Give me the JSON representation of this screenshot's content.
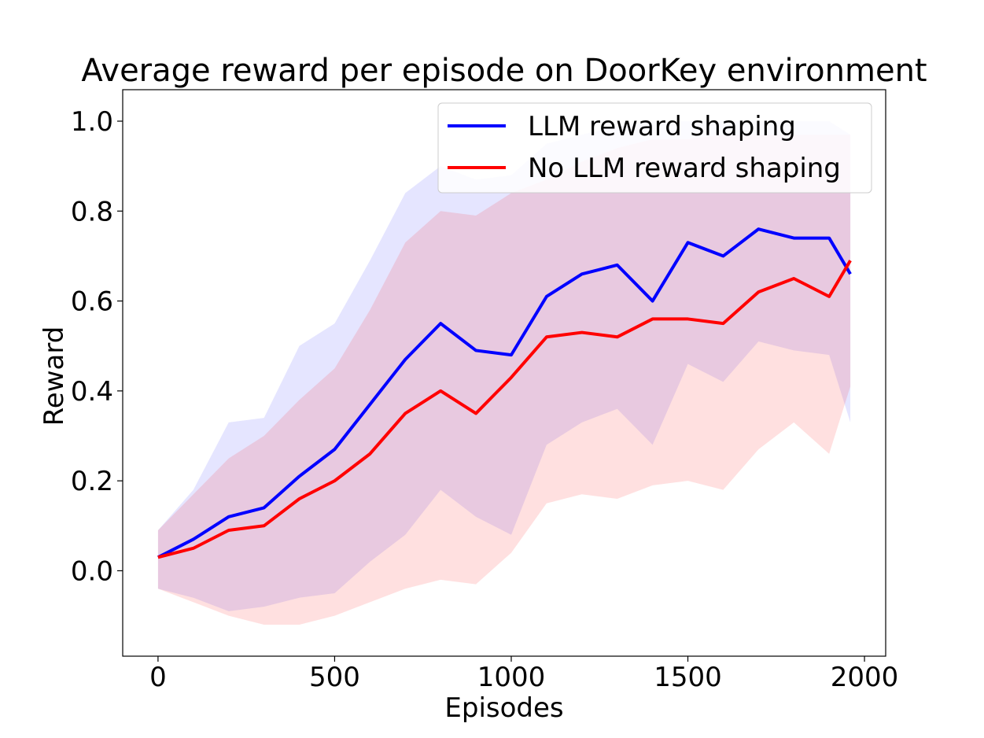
{
  "chart_data": {
    "type": "line",
    "title": "Average reward per episode on DoorKey environment",
    "xlabel": "Episodes",
    "ylabel": "Reward",
    "xlim": [
      -100,
      2060
    ],
    "ylim": [
      -0.19,
      1.07
    ],
    "xticks": [
      0,
      500,
      1000,
      1500,
      2000
    ],
    "yticks": [
      0.0,
      0.2,
      0.4,
      0.6,
      0.8,
      1.0
    ],
    "xtick_labels": [
      "0",
      "500",
      "1000",
      "1500",
      "2000"
    ],
    "ytick_labels": [
      "0.0",
      "0.2",
      "0.4",
      "0.6",
      "0.8",
      "1.0"
    ],
    "legend_position": "top-right",
    "grid": false,
    "x": [
      0,
      100,
      200,
      300,
      400,
      500,
      600,
      700,
      800,
      900,
      1000,
      1100,
      1200,
      1300,
      1400,
      1500,
      1600,
      1700,
      1800,
      1900,
      1960
    ],
    "series": [
      {
        "name": "LLM reward shaping",
        "color": "#0000ff",
        "band_color": "rgba(0,0,255,0.10)",
        "values": [
          0.03,
          0.07,
          0.12,
          0.14,
          0.21,
          0.27,
          0.37,
          0.47,
          0.55,
          0.49,
          0.48,
          0.61,
          0.66,
          0.68,
          0.6,
          0.73,
          0.7,
          0.76,
          0.74,
          0.74,
          0.66
        ],
        "upper": [
          0.09,
          0.18,
          0.33,
          0.34,
          0.5,
          0.55,
          0.69,
          0.84,
          0.9,
          0.87,
          0.88,
          0.95,
          0.97,
          0.99,
          1.0,
          1.0,
          1.0,
          1.0,
          1.0,
          1.0,
          0.97
        ],
        "lower": [
          -0.04,
          -0.06,
          -0.09,
          -0.08,
          -0.06,
          -0.05,
          0.02,
          0.08,
          0.18,
          0.12,
          0.08,
          0.28,
          0.33,
          0.36,
          0.28,
          0.46,
          0.42,
          0.51,
          0.49,
          0.48,
          0.33
        ]
      },
      {
        "name": "No LLM reward shaping",
        "color": "#ff0000",
        "band_color": "rgba(255,0,0,0.12)",
        "values": [
          0.03,
          0.05,
          0.09,
          0.1,
          0.16,
          0.2,
          0.26,
          0.35,
          0.4,
          0.35,
          0.43,
          0.52,
          0.53,
          0.52,
          0.56,
          0.56,
          0.55,
          0.62,
          0.65,
          0.61,
          0.69
        ],
        "upper": [
          0.09,
          0.17,
          0.25,
          0.3,
          0.38,
          0.45,
          0.58,
          0.73,
          0.8,
          0.79,
          0.84,
          0.87,
          0.91,
          0.94,
          0.96,
          0.96,
          0.97,
          0.97,
          0.97,
          0.97,
          0.97
        ],
        "lower": [
          -0.04,
          -0.07,
          -0.1,
          -0.12,
          -0.12,
          -0.1,
          -0.07,
          -0.04,
          -0.02,
          -0.03,
          0.04,
          0.15,
          0.17,
          0.16,
          0.19,
          0.2,
          0.18,
          0.27,
          0.33,
          0.26,
          0.41
        ]
      }
    ]
  }
}
